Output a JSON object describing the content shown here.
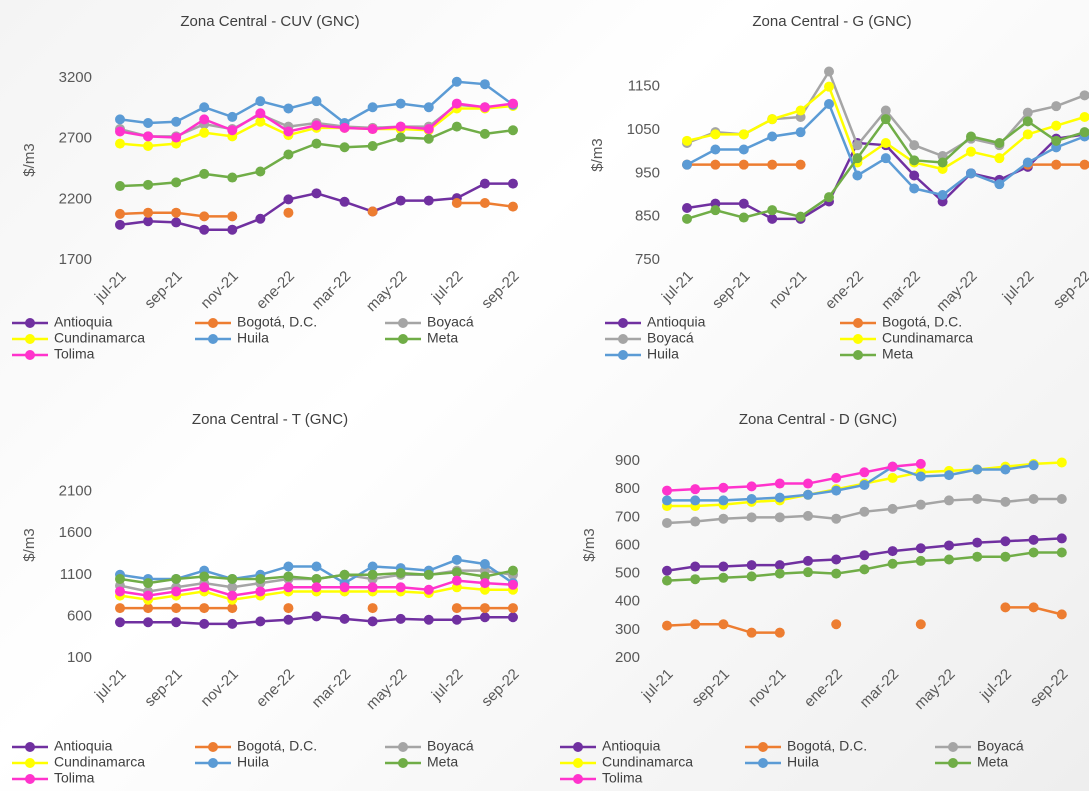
{
  "chart_data": [
    {
      "type": "line",
      "title": "Zona Central - CUV (GNC)",
      "y_label": "$/m3",
      "categories": [
        "jul-21",
        null,
        "sep-21",
        null,
        "nov-21",
        null,
        "ene-22",
        null,
        "mar-22",
        null,
        "may-22",
        null,
        "jul-22",
        null,
        "sep-22"
      ],
      "ylim": [
        1700,
        3300
      ],
      "yticks": [
        1700,
        2200,
        2700,
        3200
      ],
      "grid": false,
      "series": [
        {
          "name": "Antioquia",
          "color": "#7030a0",
          "values": [
            1990,
            2020,
            2010,
            1950,
            1950,
            2040,
            2200,
            2250,
            2180,
            2100,
            2190,
            2190,
            2210,
            2330,
            2330
          ]
        },
        {
          "name": "Bogotá, D.C.",
          "color": "#ed7d31",
          "values": [
            2080,
            2090,
            2090,
            2060,
            2060,
            null,
            2090,
            null,
            null,
            2100,
            null,
            null,
            2170,
            2170,
            2140
          ]
        },
        {
          "name": "Boyacá",
          "color": "#a5a5a5",
          "values": [
            2780,
            2720,
            2720,
            2820,
            2780,
            2900,
            2800,
            2830,
            2800,
            2790,
            2800,
            2800,
            2980,
            2960,
            2980
          ]
        },
        {
          "name": "Cundinamarca",
          "color": "#ffff00",
          "values": [
            2660,
            2640,
            2660,
            2750,
            2720,
            2840,
            2730,
            2790,
            2790,
            2780,
            2780,
            2770,
            2950,
            2950,
            2970
          ]
        },
        {
          "name": "Huila",
          "color": "#5b9bd5",
          "values": [
            2860,
            2830,
            2840,
            2960,
            2880,
            3010,
            2950,
            3010,
            2830,
            2960,
            2990,
            2960,
            3170,
            3150,
            2980
          ]
        },
        {
          "name": "Meta",
          "color": "#70ad47",
          "values": [
            2310,
            2320,
            2340,
            2410,
            2380,
            2430,
            2570,
            2660,
            2630,
            2640,
            2710,
            2700,
            2800,
            2740,
            2770
          ]
        },
        {
          "name": "Tolima",
          "color": "#ff33cc",
          "values": [
            2760,
            2720,
            2710,
            2860,
            2770,
            2910,
            2760,
            2810,
            2790,
            2780,
            2800,
            2780,
            2990,
            2960,
            2990
          ]
        }
      ]
    },
    {
      "type": "line",
      "title": "Zona Central - G (GNC)",
      "y_label": "$/m3",
      "categories": [
        "jul-21",
        null,
        "sep-21",
        null,
        "nov-21",
        null,
        "ene-22",
        null,
        "mar-22",
        null,
        "may-22",
        null,
        "jul-22",
        null,
        "sep-22"
      ],
      "ylim": [
        750,
        1200
      ],
      "yticks": [
        750,
        850,
        950,
        1050,
        1150
      ],
      "grid": false,
      "series": [
        {
          "name": "Antioquia",
          "color": "#7030a0",
          "values": [
            870,
            880,
            880,
            845,
            845,
            885,
            1020,
            1015,
            945,
            885,
            950,
            935,
            965,
            1030,
            1040
          ]
        },
        {
          "name": "Bogotá, D.C.",
          "color": "#ed7d31",
          "values": [
            970,
            970,
            970,
            970,
            970,
            null,
            null,
            null,
            null,
            null,
            null,
            null,
            970,
            970,
            970
          ]
        },
        {
          "name": "Boyacá",
          "color": "#a5a5a5",
          "values": [
            1020,
            1045,
            1040,
            1075,
            1080,
            1185,
            1015,
            1095,
            1015,
            990,
            1030,
            1015,
            1090,
            1105,
            1130
          ]
        },
        {
          "name": "Cundinamarca",
          "color": "#ffff00",
          "values": [
            1025,
            1040,
            1040,
            1075,
            1095,
            1150,
            975,
            1020,
            975,
            960,
            1000,
            985,
            1040,
            1060,
            1080
          ]
        },
        {
          "name": "Huila",
          "color": "#5b9bd5",
          "values": [
            970,
            1005,
            1005,
            1035,
            1045,
            1110,
            945,
            985,
            915,
            900,
            950,
            925,
            975,
            1010,
            1035
          ]
        },
        {
          "name": "Meta",
          "color": "#70ad47",
          "values": [
            845,
            865,
            848,
            865,
            850,
            895,
            985,
            1075,
            980,
            975,
            1035,
            1020,
            1070,
            1025,
            1045
          ]
        }
      ]
    },
    {
      "type": "line",
      "title": "Zona Central - T (GNC)",
      "y_label": "$/m3",
      "categories": [
        "jul-21",
        null,
        "sep-21",
        null,
        "nov-21",
        null,
        "ene-22",
        null,
        "mar-22",
        null,
        "may-22",
        null,
        "jul-22",
        null,
        "sep-22"
      ],
      "ylim": [
        100,
        2600
      ],
      "yticks": [
        100,
        600,
        1100,
        1600,
        2100
      ],
      "grid": false,
      "series": [
        {
          "name": "Antioquia",
          "color": "#7030a0",
          "values": [
            530,
            530,
            530,
            510,
            510,
            540,
            560,
            600,
            570,
            540,
            570,
            560,
            560,
            590,
            590
          ]
        },
        {
          "name": "Bogotá, D.C.",
          "color": "#ed7d31",
          "values": [
            700,
            700,
            700,
            700,
            700,
            null,
            700,
            null,
            null,
            700,
            null,
            null,
            700,
            700,
            700
          ]
        },
        {
          "name": "Boyacá",
          "color": "#a5a5a5",
          "values": [
            970,
            900,
            950,
            1000,
            950,
            1000,
            1050,
            1050,
            1100,
            1050,
            1100,
            1100,
            1150,
            1150,
            1100
          ]
        },
        {
          "name": "Cundinamarca",
          "color": "#ffff00",
          "values": [
            850,
            800,
            850,
            900,
            800,
            850,
            900,
            900,
            900,
            900,
            900,
            880,
            950,
            920,
            920
          ]
        },
        {
          "name": "Huila",
          "color": "#5b9bd5",
          "values": [
            1100,
            1050,
            1050,
            1150,
            1050,
            1100,
            1200,
            1200,
            1000,
            1200,
            1180,
            1150,
            1280,
            1230,
            1000
          ]
        },
        {
          "name": "Meta",
          "color": "#70ad47",
          "values": [
            1050,
            1000,
            1050,
            1080,
            1050,
            1050,
            1080,
            1050,
            1100,
            1100,
            1120,
            1100,
            1130,
            1080,
            1150
          ]
        },
        {
          "name": "Tolima",
          "color": "#ff33cc",
          "values": [
            900,
            850,
            900,
            950,
            850,
            900,
            950,
            950,
            950,
            950,
            950,
            920,
            1030,
            1000,
            980
          ]
        }
      ]
    },
    {
      "type": "line",
      "title": "Zona Central - D (GNC)",
      "y_label": "$/m3",
      "categories": [
        "jul-21",
        null,
        "sep-21",
        null,
        "nov-21",
        null,
        "ene-22",
        null,
        "mar-22",
        null,
        "may-22",
        null,
        "jul-22",
        null,
        "sep-22"
      ],
      "ylim": [
        200,
        930
      ],
      "yticks": [
        200,
        300,
        400,
        500,
        600,
        700,
        800,
        900
      ],
      "grid": false,
      "series": [
        {
          "name": "Antioquia",
          "color": "#7030a0",
          "values": [
            510,
            525,
            525,
            530,
            530,
            545,
            550,
            565,
            580,
            590,
            600,
            610,
            615,
            620,
            625
          ]
        },
        {
          "name": "Bogotá, D.C.",
          "color": "#ed7d31",
          "values": [
            315,
            320,
            320,
            290,
            290,
            null,
            320,
            null,
            null,
            320,
            null,
            null,
            380,
            380,
            355
          ]
        },
        {
          "name": "Boyacá",
          "color": "#a5a5a5",
          "values": [
            680,
            685,
            695,
            700,
            700,
            705,
            695,
            720,
            730,
            745,
            760,
            765,
            755,
            765,
            765
          ]
        },
        {
          "name": "Cundinamarca",
          "color": "#ffff00",
          "values": [
            740,
            740,
            745,
            755,
            760,
            780,
            800,
            820,
            840,
            860,
            865,
            870,
            880,
            890,
            895
          ]
        },
        {
          "name": "Huila",
          "color": "#5b9bd5",
          "values": [
            760,
            760,
            760,
            765,
            770,
            780,
            795,
            815,
            880,
            845,
            850,
            870,
            870,
            885,
            null
          ]
        },
        {
          "name": "Meta",
          "color": "#70ad47",
          "values": [
            475,
            480,
            485,
            490,
            500,
            505,
            500,
            515,
            535,
            545,
            550,
            560,
            560,
            575,
            575
          ]
        },
        {
          "name": "Tolima",
          "color": "#ff33cc",
          "values": [
            795,
            800,
            805,
            810,
            820,
            820,
            840,
            860,
            880,
            890,
            null,
            null,
            null,
            null,
            null
          ]
        }
      ]
    }
  ]
}
